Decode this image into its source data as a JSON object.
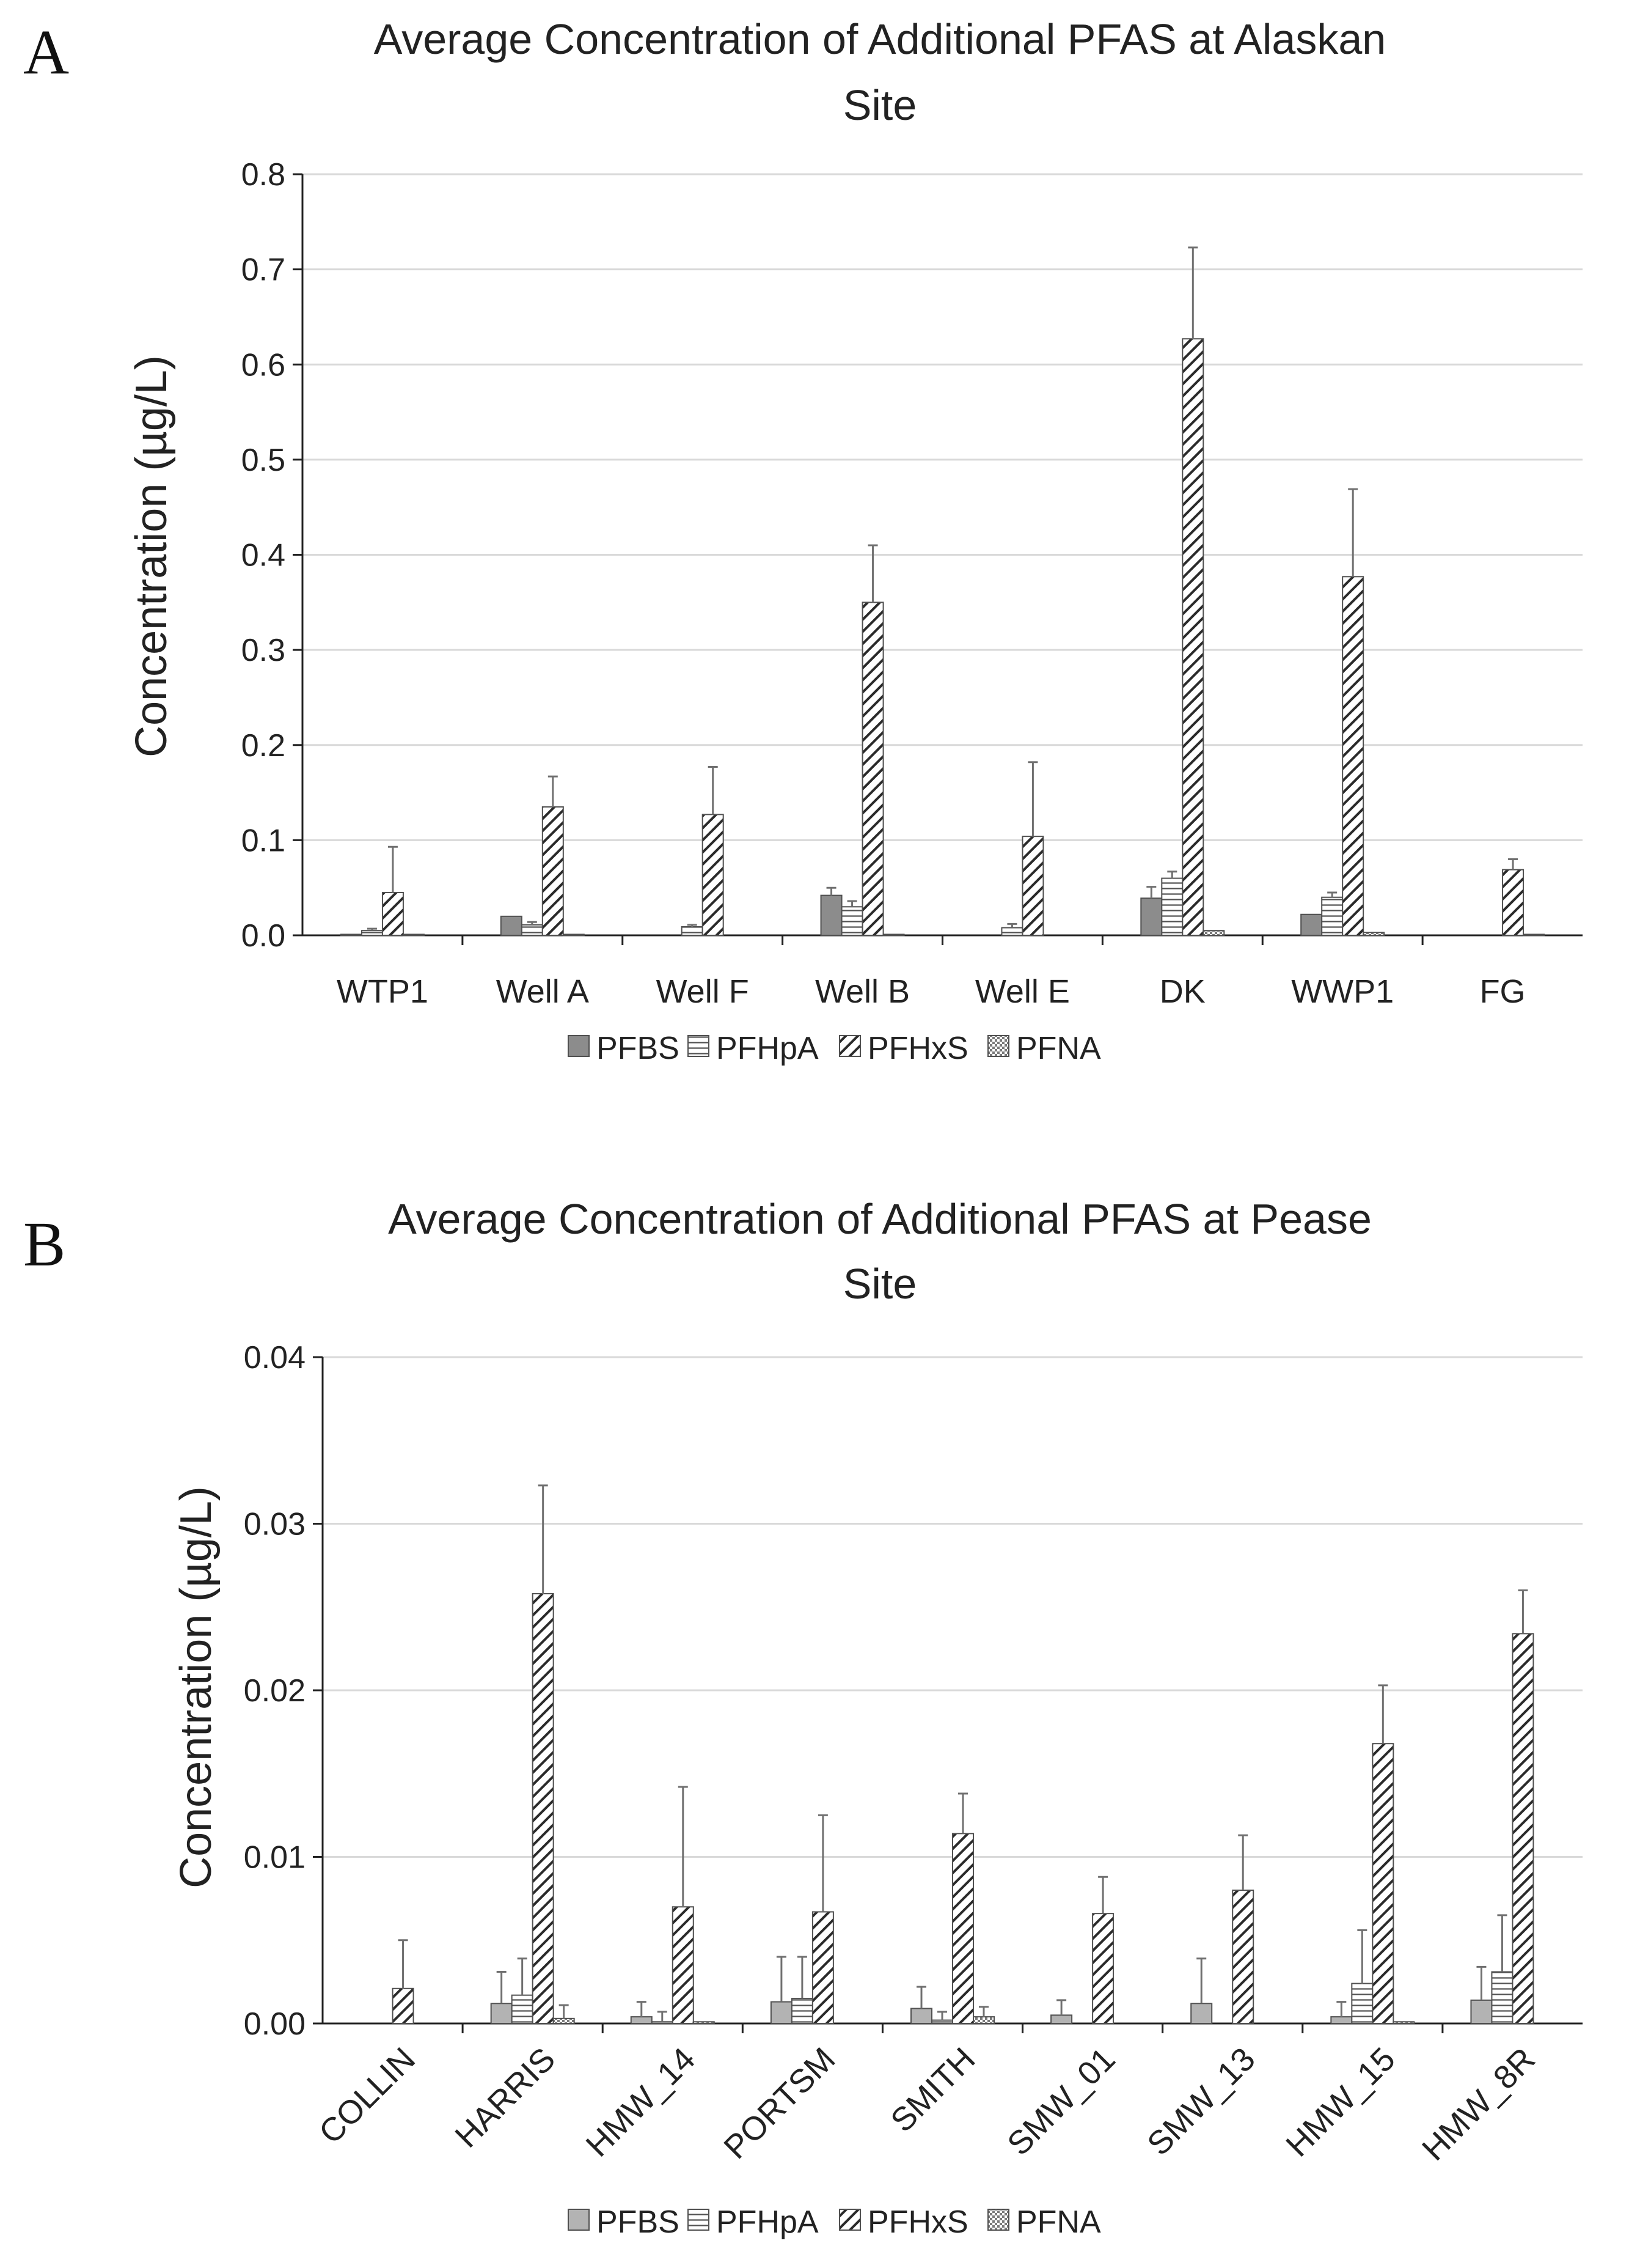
{
  "colors": {
    "PFBS": "#8c8c8c",
    "PFBS_B": "#b3b3b3",
    "stroke": "#505050",
    "grid": "#d9d9d9",
    "axis": "#222222",
    "error": "#707070"
  },
  "chart_data": [
    {
      "panel": "A",
      "type": "bar",
      "title": "Average Concentration of Additional PFAS at Alaskan Site",
      "title_lines": [
        "Average Concentration of Additional PFAS at Alaskan",
        "Site"
      ],
      "xlabel": "",
      "ylabel": "Concentration (µg/L)",
      "ylim": [
        0,
        0.8
      ],
      "yticks": [
        0.0,
        0.1,
        0.2,
        0.3,
        0.4,
        0.5,
        0.6,
        0.7,
        0.8
      ],
      "ytick_labels": [
        "0.0",
        "0.1",
        "0.2",
        "0.3",
        "0.4",
        "0.5",
        "0.6",
        "0.7",
        "0.8"
      ],
      "grid": true,
      "legend_position": "bottom",
      "categories": [
        "WTP1",
        "Well A",
        "Well F",
        "Well B",
        "Well E",
        "DK",
        "WWP1",
        "FG"
      ],
      "series": [
        {
          "name": "PFBS",
          "pattern": "solid",
          "values": [
            0.001,
            0.02,
            0.0,
            0.042,
            0.0,
            0.039,
            0.022,
            0.0
          ],
          "errors": [
            0.0,
            0.0,
            0.0,
            0.008,
            0.0,
            0.012,
            0.0,
            0.0
          ]
        },
        {
          "name": "PFHpA",
          "pattern": "horizontal",
          "values": [
            0.005,
            0.011,
            0.009,
            0.03,
            0.008,
            0.06,
            0.04,
            0.0
          ],
          "errors": [
            0.002,
            0.003,
            0.002,
            0.006,
            0.004,
            0.007,
            0.005,
            0.0
          ]
        },
        {
          "name": "PFHxS",
          "pattern": "diagonal",
          "values": [
            0.045,
            0.135,
            0.127,
            0.35,
            0.104,
            0.627,
            0.377,
            0.069
          ],
          "errors": [
            0.048,
            0.032,
            0.05,
            0.06,
            0.078,
            0.096,
            0.092,
            0.011
          ]
        },
        {
          "name": "PFNA",
          "pattern": "dotted",
          "values": [
            0.001,
            0.001,
            0.0,
            0.001,
            0.0,
            0.005,
            0.003,
            0.001
          ],
          "errors": [
            0.0,
            0.0,
            0.0,
            0.0,
            0.0,
            0.0,
            0.0,
            0.0
          ]
        }
      ]
    },
    {
      "panel": "B",
      "type": "bar",
      "title": "Average Concentration of Additional PFAS at Pease Site",
      "title_lines": [
        "Average Concentration of Additional PFAS at Pease",
        "Site"
      ],
      "xlabel": "",
      "ylabel": "Concentration (µg/L)",
      "ylim": [
        0,
        0.04
      ],
      "yticks": [
        0.0,
        0.01,
        0.02,
        0.03,
        0.04
      ],
      "ytick_labels": [
        "0.00",
        "0.01",
        "0.02",
        "0.03",
        "0.04"
      ],
      "grid": true,
      "legend_position": "bottom",
      "categories": [
        "COLLIN",
        "HARRIS",
        "HMW_14",
        "PORTSM",
        "SMITH",
        "SMW_01",
        "SMW_13",
        "HMW_15",
        "HMW_8R"
      ],
      "series": [
        {
          "name": "PFBS",
          "pattern": "solid",
          "values": [
            0.0,
            0.0012,
            0.0004,
            0.0013,
            0.0009,
            0.0005,
            0.0012,
            0.0004,
            0.0014
          ],
          "errors": [
            0.0,
            0.0019,
            0.0009,
            0.0027,
            0.0013,
            0.0009,
            0.0027,
            0.0009,
            0.002
          ]
        },
        {
          "name": "PFHpA",
          "pattern": "horizontal",
          "values": [
            0.0,
            0.0017,
            0.0001,
            0.0015,
            0.0002,
            0.0,
            0.0,
            0.0024,
            0.0031
          ],
          "errors": [
            0.0,
            0.0022,
            0.0006,
            0.0025,
            0.0005,
            0.0,
            0.0,
            0.0032,
            0.0034
          ]
        },
        {
          "name": "PFHxS",
          "pattern": "diagonal",
          "values": [
            0.0021,
            0.0258,
            0.007,
            0.0067,
            0.0114,
            0.0066,
            0.008,
            0.0168,
            0.0234
          ],
          "errors": [
            0.0029,
            0.0065,
            0.0072,
            0.0058,
            0.0024,
            0.0022,
            0.0033,
            0.0035,
            0.0026
          ]
        },
        {
          "name": "PFNA",
          "pattern": "dotted",
          "values": [
            0.0,
            0.0003,
            0.0001,
            0.0,
            0.0004,
            0.0,
            0.0,
            0.0001,
            0.0
          ],
          "errors": [
            0.0,
            0.0008,
            0.0,
            0.0,
            0.0006,
            0.0,
            0.0,
            0.0,
            0.0
          ]
        }
      ]
    }
  ]
}
